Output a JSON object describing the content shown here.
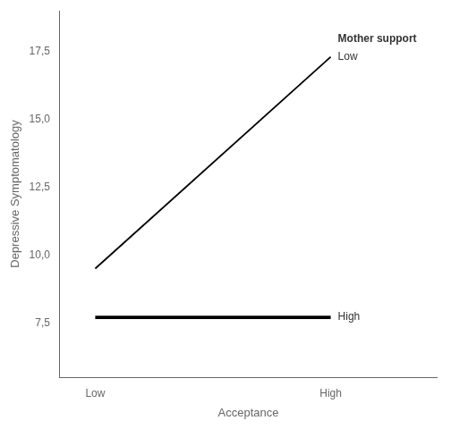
{
  "chart_data": {
    "type": "line",
    "x": [
      0,
      1
    ],
    "xlim": [
      -0.15,
      1.45
    ],
    "xticks": [
      {
        "value": 0,
        "label": "Low"
      },
      {
        "value": 1,
        "label": "High"
      }
    ],
    "xlabel": "Acceptance",
    "ylabel": "Depressive Symptomatology",
    "ylim": [
      5.5,
      19.0
    ],
    "yticks": [
      {
        "value": 7.5,
        "label": "7,5"
      },
      {
        "value": 10.0,
        "label": "10,0"
      },
      {
        "value": 12.5,
        "label": "12,5"
      },
      {
        "value": 15.0,
        "label": "15,0"
      },
      {
        "value": 17.5,
        "label": "17,5"
      }
    ],
    "series": [
      {
        "name": "Low",
        "color": "#000000",
        "values": [
          9.5,
          17.3
        ]
      },
      {
        "name": "High",
        "color": "#000000",
        "values": [
          7.7,
          7.7
        ]
      }
    ],
    "annotations": [
      {
        "text": "Mother support"
      }
    ],
    "grid": false
  }
}
